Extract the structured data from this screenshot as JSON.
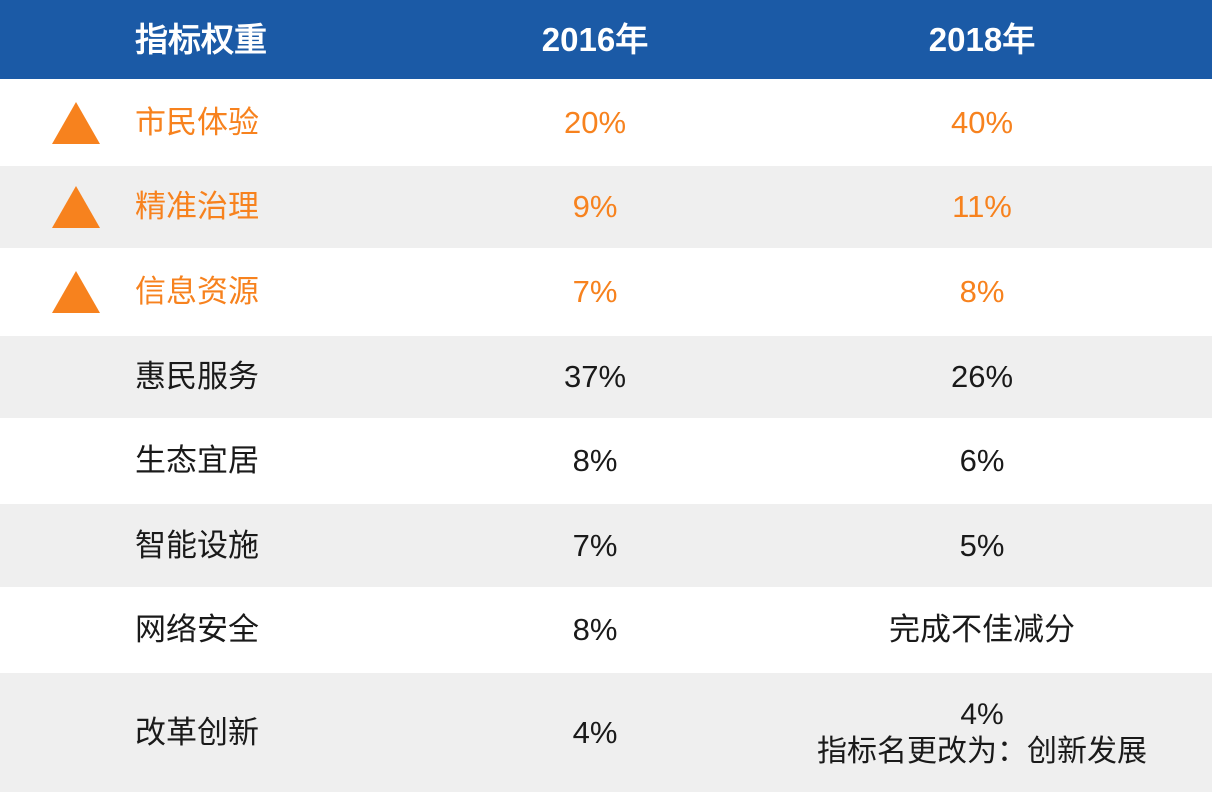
{
  "colors": {
    "header_bg": "#1B5AA6",
    "header_text": "#FFFFFF",
    "accent_orange": "#F7821E",
    "row_bg_white": "#FFFFFF",
    "row_bg_gray": "#EFEFEF",
    "body_text": "#1A1A1A"
  },
  "table": {
    "headers": {
      "indicator": "指标权重",
      "y2016": "2016年",
      "y2018": "2018年"
    },
    "rows": [
      {
        "label": "市民体验",
        "y2016": "20%",
        "y2018": "40%",
        "trend_up": true
      },
      {
        "label": "精准治理",
        "y2016": "9%",
        "y2018": "11%",
        "trend_up": true
      },
      {
        "label": "信息资源",
        "y2016": "7%",
        "y2018": "8%",
        "trend_up": true
      },
      {
        "label": "惠民服务",
        "y2016": "37%",
        "y2018": "26%",
        "trend_up": false
      },
      {
        "label": "生态宜居",
        "y2016": "8%",
        "y2018": "6%",
        "trend_up": false
      },
      {
        "label": "智能设施",
        "y2016": "7%",
        "y2018": "5%",
        "trend_up": false
      },
      {
        "label": "网络安全",
        "y2016": "8%",
        "y2018": "完成不佳减分",
        "trend_up": false
      },
      {
        "label": "改革创新",
        "y2016": "4%",
        "y2018": "4%",
        "y2018_note": "指标名更改为：创新发展",
        "trend_up": false
      }
    ]
  },
  "chart_data": {
    "type": "table",
    "title": "指标权重",
    "columns": [
      "指标权重",
      "2016年",
      "2018年"
    ],
    "rows": [
      [
        "市民体验",
        "20%",
        "40%"
      ],
      [
        "精准治理",
        "9%",
        "11%"
      ],
      [
        "信息资源",
        "7%",
        "8%"
      ],
      [
        "惠民服务",
        "37%",
        "26%"
      ],
      [
        "生态宜居",
        "8%",
        "6%"
      ],
      [
        "智能设施",
        "7%",
        "5%"
      ],
      [
        "网络安全",
        "8%",
        "完成不佳减分"
      ],
      [
        "改革创新",
        "4%",
        "4% 指标名更改为：创新发展"
      ]
    ],
    "highlighted_rows": [
      "市民体验",
      "精准治理",
      "信息资源"
    ],
    "legend_position": "none",
    "grid": false
  }
}
